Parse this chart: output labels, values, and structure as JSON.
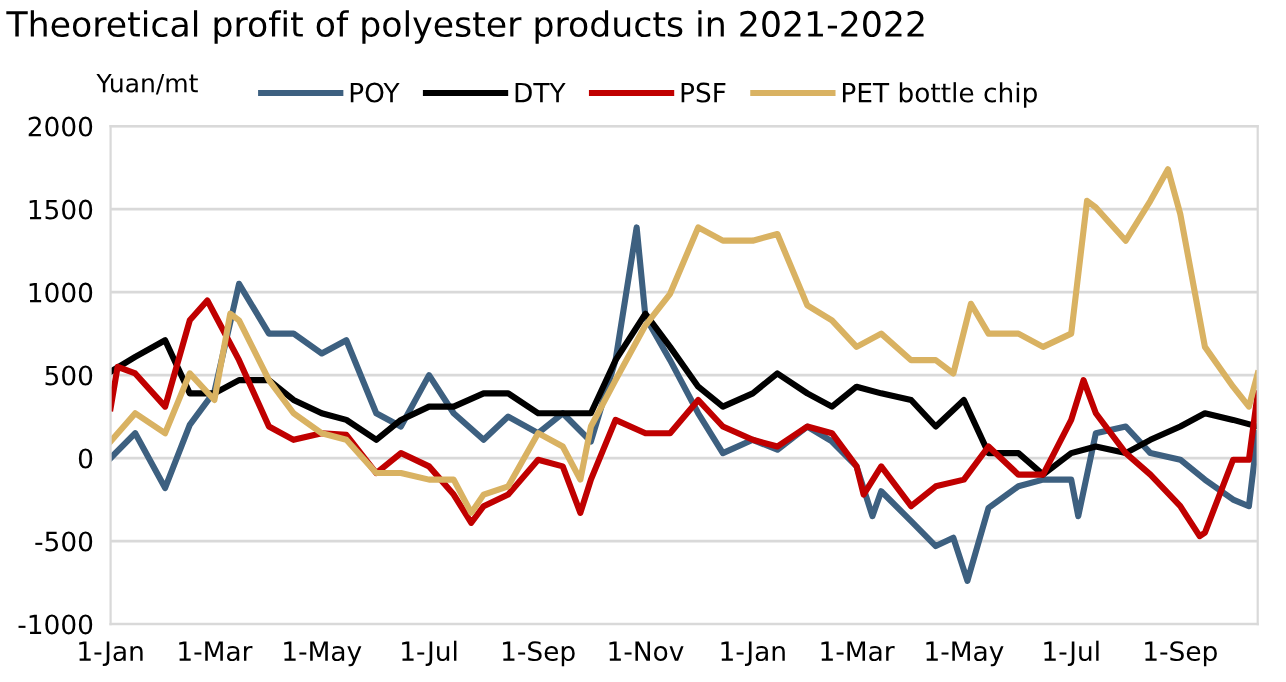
{
  "chart_data": {
    "type": "line",
    "title": "Theoretical profit of polyester products in 2021-2022",
    "ylabel": "Yuan/mt",
    "xlim": [
      "2021-01-01",
      "2022-10-15"
    ],
    "xticks": [
      {
        "value": "2021-01-01",
        "label": "1-Jan"
      },
      {
        "value": "2021-03-01",
        "label": "1-Mar"
      },
      {
        "value": "2021-05-01",
        "label": "1-May"
      },
      {
        "value": "2021-07-01",
        "label": "1-Jul"
      },
      {
        "value": "2021-09-01",
        "label": "1-Sep"
      },
      {
        "value": "2021-11-01",
        "label": "1-Nov"
      },
      {
        "value": "2022-01-01",
        "label": "1-Jan"
      },
      {
        "value": "2022-03-01",
        "label": "1-Mar"
      },
      {
        "value": "2022-05-01",
        "label": "1-May"
      },
      {
        "value": "2022-07-01",
        "label": "1-Jul"
      },
      {
        "value": "2022-09-01",
        "label": "1-Sep"
      }
    ],
    "ylim": [
      -1000,
      2000
    ],
    "yticks": [
      -1000,
      -500,
      0,
      500,
      1000,
      1500,
      2000
    ],
    "grid": "y",
    "legend": "top",
    "marker": "none",
    "line_style": "solid",
    "series": [
      {
        "name": "POY",
        "color": "#3d6080",
        "x": [
          "2021-01-01",
          "2021-01-15",
          "2021-02-01",
          "2021-02-15",
          "2021-03-01",
          "2021-03-15",
          "2021-04-01",
          "2021-04-15",
          "2021-05-01",
          "2021-05-15",
          "2021-06-01",
          "2021-06-15",
          "2021-07-01",
          "2021-07-15",
          "2021-08-01",
          "2021-08-15",
          "2021-09-01",
          "2021-09-15",
          "2021-10-01",
          "2021-10-15",
          "2021-10-27",
          "2021-11-01",
          "2021-11-15",
          "2021-12-01",
          "2021-12-15",
          "2022-01-01",
          "2022-01-15",
          "2022-02-01",
          "2022-02-15",
          "2022-03-01",
          "2022-03-10",
          "2022-03-15",
          "2022-04-01",
          "2022-04-15",
          "2022-04-25",
          "2022-05-03",
          "2022-05-15",
          "2022-06-01",
          "2022-06-15",
          "2022-07-01",
          "2022-07-05",
          "2022-07-15",
          "2022-08-01",
          "2022-08-15",
          "2022-09-01",
          "2022-09-15",
          "2022-10-01",
          "2022-10-10",
          "2022-10-15"
        ],
        "values": [
          0,
          150,
          -180,
          200,
          400,
          1050,
          750,
          750,
          630,
          710,
          270,
          190,
          500,
          270,
          110,
          250,
          150,
          270,
          100,
          590,
          1390,
          850,
          590,
          270,
          30,
          110,
          50,
          190,
          100,
          -50,
          -350,
          -200,
          -380,
          -530,
          -480,
          -740,
          -300,
          -170,
          -130,
          -130,
          -350,
          150,
          190,
          30,
          -10,
          -130,
          -250,
          -290,
          150
        ]
      },
      {
        "name": "DTY",
        "color": "#000000",
        "x": [
          "2021-01-01",
          "2021-01-15",
          "2021-02-01",
          "2021-02-15",
          "2021-03-01",
          "2021-03-15",
          "2021-04-01",
          "2021-04-15",
          "2021-05-01",
          "2021-05-15",
          "2021-06-01",
          "2021-06-15",
          "2021-07-01",
          "2021-07-15",
          "2021-08-01",
          "2021-08-15",
          "2021-09-01",
          "2021-09-15",
          "2021-10-01",
          "2021-10-15",
          "2021-11-01",
          "2021-11-15",
          "2021-12-01",
          "2021-12-15",
          "2022-01-01",
          "2022-01-15",
          "2022-02-01",
          "2022-02-15",
          "2022-03-01",
          "2022-03-15",
          "2022-04-01",
          "2022-04-15",
          "2022-05-01",
          "2022-05-15",
          "2022-06-01",
          "2022-06-15",
          "2022-07-01",
          "2022-07-15",
          "2022-08-01",
          "2022-08-15",
          "2022-09-01",
          "2022-09-15",
          "2022-10-01",
          "2022-10-15"
        ],
        "values": [
          520,
          610,
          710,
          390,
          390,
          470,
          470,
          350,
          270,
          230,
          110,
          230,
          310,
          310,
          390,
          390,
          270,
          270,
          270,
          590,
          870,
          670,
          430,
          310,
          390,
          510,
          390,
          310,
          430,
          390,
          350,
          190,
          350,
          30,
          30,
          -100,
          30,
          70,
          30,
          110,
          190,
          270,
          230,
          190
        ]
      },
      {
        "name": "PSF",
        "color": "#c00000",
        "x": [
          "2021-01-01",
          "2021-01-05",
          "2021-01-15",
          "2021-02-01",
          "2021-02-15",
          "2021-02-25",
          "2021-03-01",
          "2021-03-15",
          "2021-04-01",
          "2021-04-15",
          "2021-05-01",
          "2021-05-15",
          "2021-06-01",
          "2021-06-15",
          "2021-07-01",
          "2021-07-15",
          "2021-07-25",
          "2021-08-01",
          "2021-08-15",
          "2021-09-01",
          "2021-09-15",
          "2021-09-25",
          "2021-10-01",
          "2021-10-15",
          "2021-11-01",
          "2021-11-15",
          "2021-12-01",
          "2021-12-15",
          "2022-01-01",
          "2022-01-15",
          "2022-02-01",
          "2022-02-15",
          "2022-03-01",
          "2022-03-05",
          "2022-03-15",
          "2022-04-01",
          "2022-04-15",
          "2022-05-01",
          "2022-05-15",
          "2022-06-01",
          "2022-06-15",
          "2022-07-01",
          "2022-07-08",
          "2022-07-15",
          "2022-08-01",
          "2022-08-15",
          "2022-09-01",
          "2022-09-12",
          "2022-09-15",
          "2022-10-01",
          "2022-10-10",
          "2022-10-15"
        ],
        "values": [
          300,
          550,
          510,
          310,
          830,
          950,
          870,
          590,
          190,
          110,
          150,
          140,
          -90,
          30,
          -50,
          -220,
          -390,
          -290,
          -220,
          -10,
          -50,
          -330,
          -130,
          230,
          150,
          150,
          350,
          190,
          110,
          70,
          190,
          150,
          -50,
          -220,
          -50,
          -290,
          -170,
          -130,
          70,
          -100,
          -100,
          230,
          470,
          270,
          30,
          -100,
          -290,
          -470,
          -450,
          -10,
          -10,
          390
        ]
      },
      {
        "name": "PET bottle chip",
        "color": "#d9b262",
        "x": [
          "2021-01-01",
          "2021-01-15",
          "2021-02-01",
          "2021-02-15",
          "2021-03-01",
          "2021-03-10",
          "2021-03-15",
          "2021-04-01",
          "2021-04-15",
          "2021-05-01",
          "2021-05-15",
          "2021-06-01",
          "2021-06-15",
          "2021-07-01",
          "2021-07-15",
          "2021-07-25",
          "2021-08-01",
          "2021-08-15",
          "2021-09-01",
          "2021-09-15",
          "2021-09-25",
          "2021-10-01",
          "2021-10-15",
          "2021-11-01",
          "2021-11-15",
          "2021-12-01",
          "2021-12-15",
          "2022-01-01",
          "2022-01-15",
          "2022-02-01",
          "2022-02-15",
          "2022-03-01",
          "2022-03-15",
          "2022-04-01",
          "2022-04-15",
          "2022-04-25",
          "2022-05-05",
          "2022-05-15",
          "2022-06-01",
          "2022-06-15",
          "2022-07-01",
          "2022-07-10",
          "2022-07-15",
          "2022-08-01",
          "2022-08-15",
          "2022-08-25",
          "2022-09-01",
          "2022-09-15",
          "2022-10-01",
          "2022-10-10",
          "2022-10-15"
        ],
        "values": [
          100,
          270,
          150,
          510,
          350,
          870,
          830,
          470,
          270,
          150,
          110,
          -90,
          -90,
          -130,
          -130,
          -330,
          -220,
          -170,
          150,
          70,
          -130,
          190,
          470,
          800,
          990,
          1390,
          1310,
          1310,
          1350,
          920,
          830,
          670,
          750,
          590,
          590,
          510,
          930,
          750,
          750,
          670,
          750,
          1550,
          1510,
          1310,
          1550,
          1740,
          1470,
          670,
          430,
          310,
          510
        ]
      }
    ]
  }
}
